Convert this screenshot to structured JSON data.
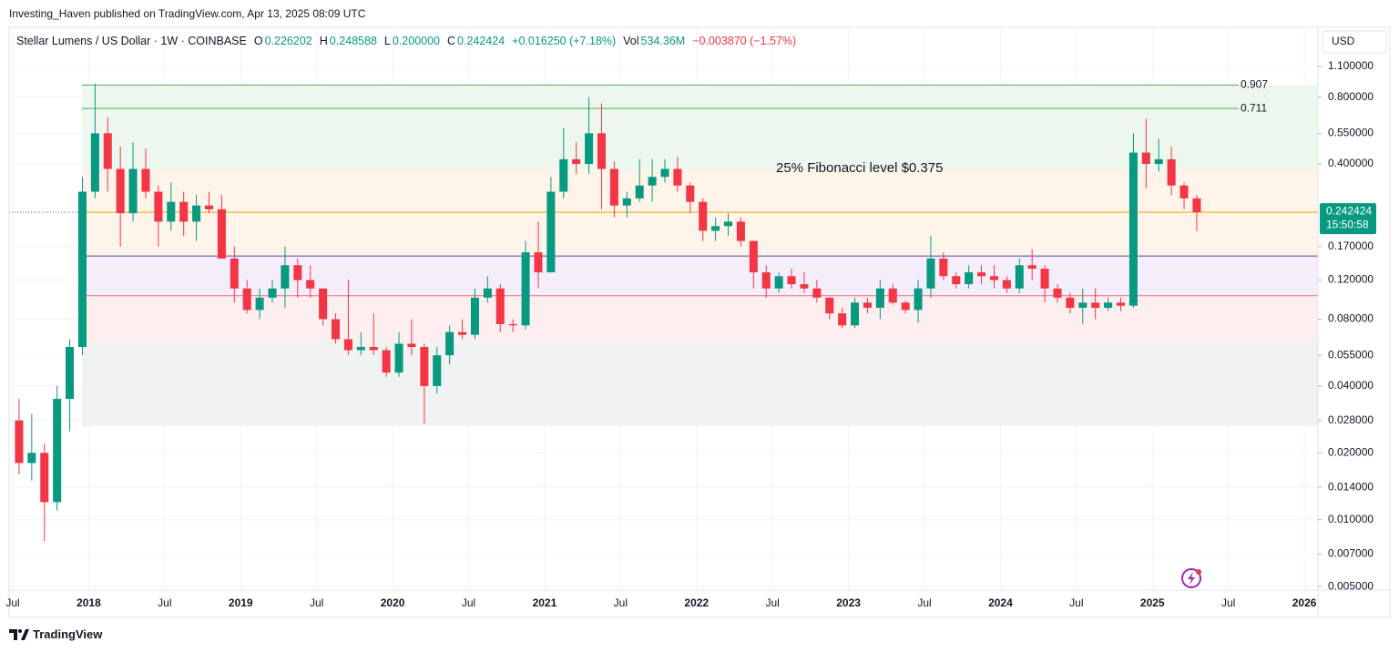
{
  "header": "Investing_Haven published on TradingView.com, Apr 13, 2025 08:09 UTC",
  "legend": {
    "symbol": "Stellar Lumens / US Dollar · 1W · COINBASE",
    "o_key": "O",
    "o": "0.226202",
    "h_key": "H",
    "h": "0.248588",
    "l_key": "L",
    "l": "0.200000",
    "c_key": "C",
    "c": "0.242424",
    "change": "+0.016250 (+7.18%)",
    "vol_key": "Vol",
    "vol": "534.36M",
    "vol_change": "−0.003870 (−1.57%)"
  },
  "footer": "TradingView",
  "chart_data": {
    "type": "candlestick",
    "currency": "USD",
    "log_scale": true,
    "grid": true,
    "up_color": "#089981",
    "down_color": "#f23645",
    "x": [
      "2017-07",
      "2017-08",
      "2017-09",
      "2017-10",
      "2017-11",
      "2017-12",
      "2018-01",
      "2018-02",
      "2018-03",
      "2018-04",
      "2018-05",
      "2018-06",
      "2018-07",
      "2018-08",
      "2018-09",
      "2018-10",
      "2018-11",
      "2018-12",
      "2019-01",
      "2019-02",
      "2019-03",
      "2019-04",
      "2019-05",
      "2019-06",
      "2019-07",
      "2019-08",
      "2019-09",
      "2019-10",
      "2019-11",
      "2019-12",
      "2020-01",
      "2020-02",
      "2020-03",
      "2020-04",
      "2020-05",
      "2020-06",
      "2020-07",
      "2020-08",
      "2020-09",
      "2020-10",
      "2020-11",
      "2020-12",
      "2021-01",
      "2021-02",
      "2021-03",
      "2021-04",
      "2021-05",
      "2021-06",
      "2021-07",
      "2021-08",
      "2021-09",
      "2021-10",
      "2021-11",
      "2021-12",
      "2022-01",
      "2022-02",
      "2022-03",
      "2022-04",
      "2022-05",
      "2022-06",
      "2022-07",
      "2022-08",
      "2022-09",
      "2022-10",
      "2022-11",
      "2022-12",
      "2023-01",
      "2023-02",
      "2023-03",
      "2023-04",
      "2023-05",
      "2023-06",
      "2023-07",
      "2023-08",
      "2023-09",
      "2023-10",
      "2023-11",
      "2023-12",
      "2024-01",
      "2024-02",
      "2024-03",
      "2024-04",
      "2024-05",
      "2024-06",
      "2024-07",
      "2024-08",
      "2024-09",
      "2024-10",
      "2024-11",
      "2024-12",
      "2025-01",
      "2025-02",
      "2025-03",
      "2025-04"
    ],
    "open": [
      0.028,
      0.018,
      0.02,
      0.012,
      0.035,
      0.06,
      0.3,
      0.55,
      0.38,
      0.24,
      0.38,
      0.3,
      0.22,
      0.27,
      0.22,
      0.26,
      0.25,
      0.15,
      0.11,
      0.088,
      0.1,
      0.11,
      0.14,
      0.12,
      0.11,
      0.08,
      0.065,
      0.058,
      0.06,
      0.058,
      0.046,
      0.062,
      0.06,
      0.04,
      0.055,
      0.07,
      0.068,
      0.1,
      0.11,
      0.076,
      0.075,
      0.16,
      0.13,
      0.3,
      0.42,
      0.4,
      0.55,
      0.38,
      0.26,
      0.28,
      0.32,
      0.35,
      0.38,
      0.32,
      0.27,
      0.2,
      0.21,
      0.22,
      0.18,
      0.13,
      0.11,
      0.125,
      0.115,
      0.11,
      0.1,
      0.085,
      0.075,
      0.095,
      0.09,
      0.11,
      0.095,
      0.088,
      0.11,
      0.15,
      0.125,
      0.115,
      0.13,
      0.125,
      0.12,
      0.11,
      0.14,
      0.135,
      0.11,
      0.1,
      0.09,
      0.095,
      0.09,
      0.095,
      0.092,
      0.45,
      0.4,
      0.42,
      0.32,
      0.28
    ],
    "high": [
      0.035,
      0.03,
      0.022,
      0.04,
      0.065,
      0.35,
      0.92,
      0.65,
      0.48,
      0.5,
      0.47,
      0.32,
      0.33,
      0.3,
      0.29,
      0.3,
      0.29,
      0.17,
      0.12,
      0.11,
      0.12,
      0.17,
      0.15,
      0.14,
      0.11,
      0.085,
      0.12,
      0.07,
      0.085,
      0.06,
      0.07,
      0.08,
      0.062,
      0.06,
      0.075,
      0.08,
      0.11,
      0.125,
      0.115,
      0.08,
      0.18,
      0.22,
      0.35,
      0.58,
      0.5,
      0.8,
      0.75,
      0.41,
      0.3,
      0.42,
      0.42,
      0.42,
      0.43,
      0.33,
      0.28,
      0.23,
      0.24,
      0.23,
      0.18,
      0.14,
      0.13,
      0.135,
      0.13,
      0.12,
      0.1,
      0.09,
      0.1,
      0.1,
      0.12,
      0.115,
      0.097,
      0.12,
      0.19,
      0.16,
      0.13,
      0.14,
      0.14,
      0.14,
      0.125,
      0.15,
      0.165,
      0.14,
      0.115,
      0.105,
      0.11,
      0.11,
      0.1,
      0.1,
      0.55,
      0.64,
      0.52,
      0.48,
      0.33,
      0.29
    ],
    "low": [
      0.016,
      0.015,
      0.008,
      0.011,
      0.025,
      0.055,
      0.28,
      0.3,
      0.17,
      0.22,
      0.28,
      0.17,
      0.2,
      0.19,
      0.18,
      0.24,
      0.15,
      0.095,
      0.085,
      0.08,
      0.095,
      0.09,
      0.1,
      0.1,
      0.075,
      0.062,
      0.055,
      0.055,
      0.055,
      0.044,
      0.044,
      0.055,
      0.027,
      0.037,
      0.05,
      0.065,
      0.065,
      0.095,
      0.07,
      0.07,
      0.072,
      0.11,
      0.13,
      0.28,
      0.36,
      0.36,
      0.25,
      0.23,
      0.23,
      0.27,
      0.27,
      0.33,
      0.3,
      0.24,
      0.18,
      0.18,
      0.19,
      0.17,
      0.11,
      0.1,
      0.105,
      0.11,
      0.105,
      0.095,
      0.08,
      0.073,
      0.073,
      0.085,
      0.08,
      0.093,
      0.085,
      0.077,
      0.1,
      0.12,
      0.11,
      0.11,
      0.115,
      0.11,
      0.105,
      0.105,
      0.12,
      0.095,
      0.095,
      0.085,
      0.076,
      0.08,
      0.087,
      0.087,
      0.09,
      0.31,
      0.37,
      0.29,
      0.25,
      0.2
    ],
    "close": [
      0.018,
      0.02,
      0.012,
      0.035,
      0.06,
      0.3,
      0.55,
      0.38,
      0.24,
      0.38,
      0.3,
      0.22,
      0.27,
      0.22,
      0.26,
      0.25,
      0.15,
      0.11,
      0.088,
      0.1,
      0.11,
      0.14,
      0.12,
      0.11,
      0.08,
      0.065,
      0.058,
      0.06,
      0.058,
      0.046,
      0.062,
      0.06,
      0.04,
      0.055,
      0.07,
      0.068,
      0.1,
      0.11,
      0.076,
      0.075,
      0.16,
      0.13,
      0.3,
      0.42,
      0.4,
      0.55,
      0.38,
      0.26,
      0.28,
      0.32,
      0.35,
      0.38,
      0.32,
      0.27,
      0.2,
      0.21,
      0.22,
      0.18,
      0.13,
      0.11,
      0.125,
      0.115,
      0.11,
      0.1,
      0.085,
      0.075,
      0.095,
      0.09,
      0.11,
      0.095,
      0.088,
      0.11,
      0.15,
      0.125,
      0.115,
      0.13,
      0.125,
      0.12,
      0.11,
      0.14,
      0.135,
      0.11,
      0.1,
      0.09,
      0.095,
      0.09,
      0.095,
      0.092,
      0.45,
      0.4,
      0.42,
      0.32,
      0.28,
      0.242424
    ],
    "xlim": [
      "2017-07",
      "2026-02"
    ],
    "xticks": [
      {
        "value": "2017-07",
        "label": "Jul"
      },
      {
        "value": "2018-01",
        "label": "2018"
      },
      {
        "value": "2018-07",
        "label": "Jul"
      },
      {
        "value": "2019-01",
        "label": "2019"
      },
      {
        "value": "2019-07",
        "label": "Jul"
      },
      {
        "value": "2020-01",
        "label": "2020"
      },
      {
        "value": "2020-07",
        "label": "Jul"
      },
      {
        "value": "2021-01",
        "label": "2021"
      },
      {
        "value": "2021-07",
        "label": "Jul"
      },
      {
        "value": "2022-01",
        "label": "2022"
      },
      {
        "value": "2022-07",
        "label": "Jul"
      },
      {
        "value": "2023-01",
        "label": "2023"
      },
      {
        "value": "2023-07",
        "label": "Jul"
      },
      {
        "value": "2024-01",
        "label": "2024"
      },
      {
        "value": "2024-07",
        "label": "Jul"
      },
      {
        "value": "2025-01",
        "label": "2025"
      },
      {
        "value": "2025-07",
        "label": "Jul"
      },
      {
        "value": "2026-01",
        "label": "2026"
      }
    ],
    "ylim": [
      0.00482,
      1.65
    ],
    "yticks": [
      {
        "value": 1.1,
        "label": "1.100000"
      },
      {
        "value": 0.8,
        "label": "0.800000"
      },
      {
        "value": 0.55,
        "label": "0.550000"
      },
      {
        "value": 0.4,
        "label": "0.400000"
      },
      {
        "value": 0.17,
        "label": "0.170000"
      },
      {
        "value": 0.12,
        "label": "0.120000"
      },
      {
        "value": 0.08,
        "label": "0.080000"
      },
      {
        "value": 0.055,
        "label": "0.055000"
      },
      {
        "value": 0.04,
        "label": "0.040000"
      },
      {
        "value": 0.028,
        "label": "0.028000"
      },
      {
        "value": 0.02,
        "label": "0.020000"
      },
      {
        "value": 0.014,
        "label": "0.014000"
      },
      {
        "value": 0.01,
        "label": "0.010000"
      },
      {
        "value": 0.007,
        "label": "0.007000"
      },
      {
        "value": 0.005,
        "label": "0.005000"
      }
    ],
    "last_price": 0.242424,
    "last_price_color": "#f7a600",
    "countdown": "15:50:58",
    "levels": [
      {
        "value": 0.907,
        "label": "0.907",
        "color": "#4caf50"
      },
      {
        "value": 0.711,
        "label": "0.711",
        "color": "#4caf50"
      }
    ],
    "level_lines": [
      {
        "value": 0.154,
        "color": "#673ab7"
      },
      {
        "value": 0.102,
        "color": "#f26d7d"
      }
    ],
    "bands": [
      {
        "top": 0.907,
        "bottom": 0.375,
        "color": "#eef7ee"
      },
      {
        "top": 0.375,
        "bottom": 0.154,
        "color": "#fff4ea"
      },
      {
        "top": 0.154,
        "bottom": 0.102,
        "color": "#f4eefb"
      },
      {
        "top": 0.102,
        "bottom": 0.0635,
        "color": "#fdeff0"
      },
      {
        "top": 0.0635,
        "bottom": 0.0264,
        "color": "#f1f2f2"
      }
    ],
    "annotation": "25% Fibonacci level $0.375",
    "annotation_color": "#673ab7"
  }
}
